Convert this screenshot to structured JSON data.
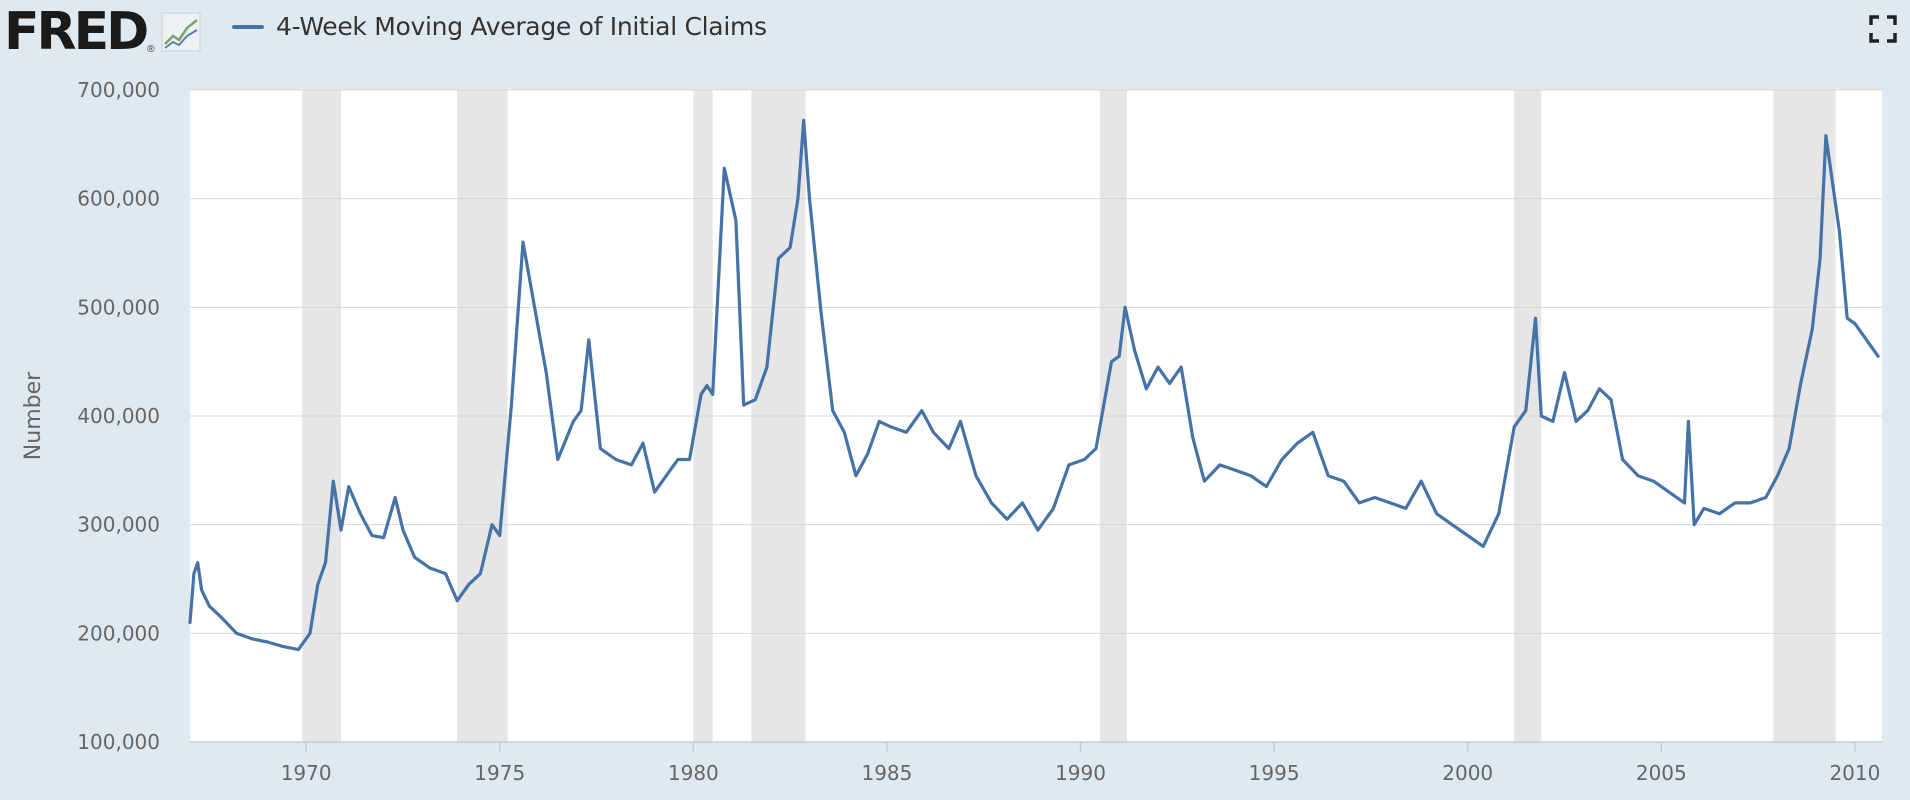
{
  "header": {
    "logo_text": "FRED",
    "logo_registered": "®",
    "legend_label": "4-Week Moving Average of Initial Claims",
    "fullscreen_icon": "expand-icon"
  },
  "colors": {
    "background": "#e1e9f0",
    "plot_background": "#ffffff",
    "series": "#4572a7",
    "recession": "#e6e6e6",
    "grid": "#d8d8d8"
  },
  "chart_data": {
    "type": "line",
    "title": "",
    "xlabel": "",
    "ylabel": "Number",
    "xlim": [
      1967.0,
      2010.7
    ],
    "ylim": [
      100000,
      700000
    ],
    "y_ticks": [
      100000,
      200000,
      300000,
      400000,
      500000,
      600000,
      700000
    ],
    "y_tick_labels": [
      "100,000",
      "200,000",
      "300,000",
      "400,000",
      "500,000",
      "600,000",
      "700,000"
    ],
    "x_ticks": [
      1970,
      1975,
      1980,
      1985,
      1990,
      1995,
      2000,
      2005,
      2010
    ],
    "x_tick_labels": [
      "1970",
      "1975",
      "1980",
      "1985",
      "1990",
      "1995",
      "2000",
      "2005",
      "2010"
    ],
    "grid": true,
    "legend": "top-left",
    "recessions": [
      [
        1969.9,
        1970.9
      ],
      [
        1973.9,
        1975.2
      ],
      [
        1980.0,
        1980.5
      ],
      [
        1981.5,
        1982.9
      ],
      [
        1990.5,
        1991.2
      ],
      [
        2001.2,
        2001.9
      ],
      [
        2007.9,
        2009.5
      ]
    ],
    "series": [
      {
        "name": "4-Week Moving Average of Initial Claims",
        "x": [
          1967.0,
          1967.1,
          1967.2,
          1967.3,
          1967.5,
          1967.8,
          1968.2,
          1968.6,
          1969.0,
          1969.4,
          1969.8,
          1970.1,
          1970.3,
          1970.5,
          1970.7,
          1970.9,
          1971.1,
          1971.4,
          1971.7,
          1972.0,
          1972.3,
          1972.5,
          1972.8,
          1973.2,
          1973.6,
          1973.9,
          1974.2,
          1974.5,
          1974.8,
          1975.0,
          1975.1,
          1975.3,
          1975.6,
          1975.9,
          1976.2,
          1976.5,
          1976.9,
          1977.1,
          1977.3,
          1977.6,
          1978.0,
          1978.4,
          1978.7,
          1979.0,
          1979.3,
          1979.6,
          1979.9,
          1980.2,
          1980.35,
          1980.5,
          1980.8,
          1981.1,
          1981.3,
          1981.6,
          1981.9,
          1982.2,
          1982.5,
          1982.7,
          1982.85,
          1983.0,
          1983.3,
          1983.6,
          1983.9,
          1984.2,
          1984.5,
          1984.8,
          1985.1,
          1985.5,
          1985.9,
          1986.2,
          1986.6,
          1986.9,
          1987.3,
          1987.7,
          1988.1,
          1988.5,
          1988.9,
          1989.3,
          1989.7,
          1990.1,
          1990.4,
          1990.8,
          1991.0,
          1991.15,
          1991.4,
          1991.7,
          1992.0,
          1992.3,
          1992.6,
          1992.9,
          1993.2,
          1993.6,
          1994.0,
          1994.4,
          1994.8,
          1995.2,
          1995.6,
          1996.0,
          1996.4,
          1996.8,
          1997.2,
          1997.6,
          1998.0,
          1998.4,
          1998.8,
          1999.2,
          1999.6,
          2000.0,
          2000.4,
          2000.8,
          2001.2,
          2001.5,
          2001.75,
          2001.9,
          2002.2,
          2002.5,
          2002.8,
          2003.1,
          2003.4,
          2003.7,
          2004.0,
          2004.4,
          2004.8,
          2005.2,
          2005.6,
          2005.7,
          2005.85,
          2006.1,
          2006.5,
          2006.9,
          2007.3,
          2007.7,
          2008.0,
          2008.3,
          2008.6,
          2008.9,
          2009.1,
          2009.25,
          2009.4,
          2009.6,
          2009.8,
          2010.0,
          2010.3,
          2010.6
        ],
        "values": [
          210000,
          255000,
          265000,
          240000,
          225000,
          215000,
          200000,
          195000,
          192000,
          188000,
          185000,
          200000,
          245000,
          265000,
          340000,
          295000,
          335000,
          310000,
          290000,
          288000,
          325000,
          295000,
          270000,
          260000,
          255000,
          230000,
          245000,
          255000,
          300000,
          290000,
          330000,
          410000,
          560000,
          500000,
          440000,
          360000,
          395000,
          405000,
          470000,
          370000,
          360000,
          355000,
          375000,
          330000,
          345000,
          360000,
          360000,
          420000,
          428000,
          420000,
          628000,
          580000,
          410000,
          415000,
          445000,
          545000,
          555000,
          600000,
          672000,
          600000,
          495000,
          405000,
          385000,
          345000,
          365000,
          395000,
          390000,
          385000,
          405000,
          385000,
          370000,
          395000,
          345000,
          320000,
          305000,
          320000,
          295000,
          315000,
          355000,
          360000,
          370000,
          450000,
          455000,
          500000,
          460000,
          425000,
          445000,
          430000,
          445000,
          380000,
          340000,
          355000,
          350000,
          345000,
          335000,
          360000,
          375000,
          385000,
          345000,
          340000,
          320000,
          325000,
          320000,
          315000,
          340000,
          310000,
          300000,
          290000,
          280000,
          310000,
          390000,
          405000,
          490000,
          400000,
          395000,
          440000,
          395000,
          405000,
          425000,
          415000,
          360000,
          345000,
          340000,
          330000,
          320000,
          395000,
          300000,
          315000,
          310000,
          320000,
          320000,
          325000,
          345000,
          370000,
          430000,
          480000,
          545000,
          658000,
          620000,
          570000,
          490000,
          485000,
          470000,
          455000
        ]
      }
    ]
  }
}
